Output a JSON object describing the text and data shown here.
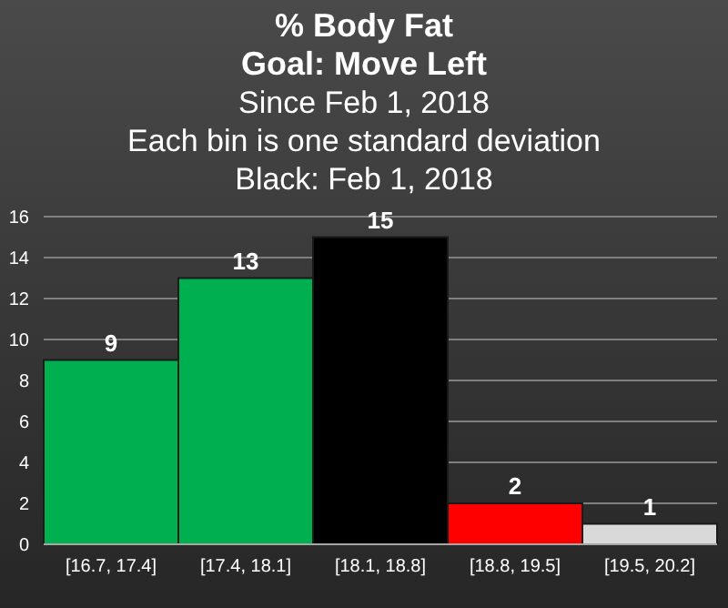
{
  "chart_data": {
    "type": "bar",
    "title": "% Body Fat",
    "subtitle": "Goal: Move Left",
    "annotations": [
      "Since Feb 1, 2018",
      "Each bin is one standard deviation",
      "Black: Feb 1, 2018"
    ],
    "categories": [
      "[16.7, 17.4]",
      "[17.4, 18.1]",
      "[18.1, 18.8]",
      "[18.8, 19.5]",
      "[19.5, 20.2]"
    ],
    "values": [
      9,
      13,
      15,
      2,
      1
    ],
    "colors": [
      "#00b050",
      "#00b050",
      "#000000",
      "#ff0000",
      "#d9d9d9"
    ],
    "ylim": [
      0,
      16
    ],
    "yticks": [
      0,
      2,
      4,
      6,
      8,
      10,
      12,
      14,
      16
    ],
    "grid": "y",
    "data_labels": true
  }
}
